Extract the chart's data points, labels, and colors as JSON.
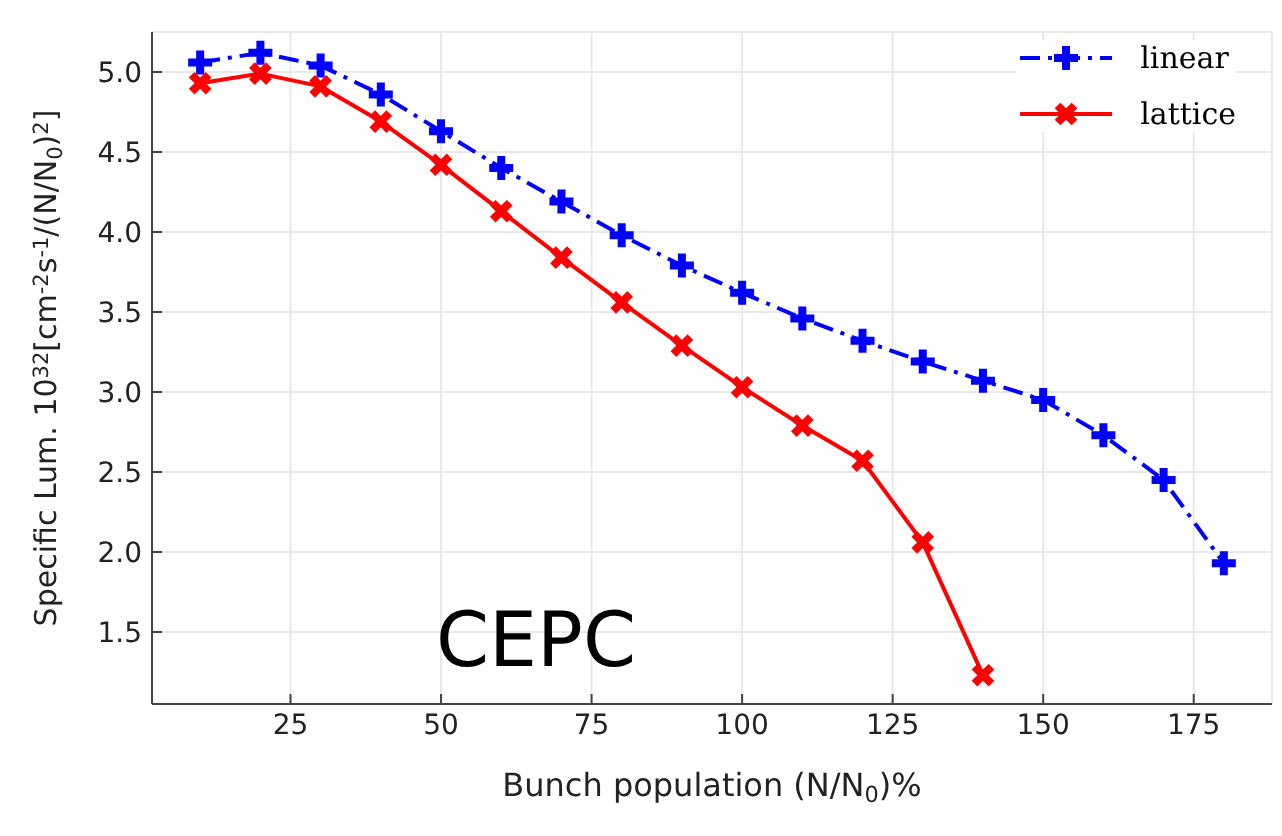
{
  "chart_data": {
    "type": "line",
    "xlabel": "Bunch population (N/N$_{0}$)%",
    "ylabel": "Specific Lum. 10$^{32}$[cm$^{-2}$s$^{-1}$/(N/N$_{0}$)$^{2}$]",
    "annotations": [
      "CEPC"
    ],
    "xlim": [
      2,
      188
    ],
    "xticks": [
      25,
      50,
      75,
      100,
      125,
      150,
      175
    ],
    "ylim": [
      1.05,
      5.25
    ],
    "yticks": [
      1.5,
      {
        "value": 2,
        "label": "2.0"
      },
      2.5,
      {
        "value": 3,
        "label": "3.0"
      },
      3.5,
      {
        "value": 4,
        "label": "4.0"
      },
      4.5,
      {
        "value": 5,
        "label": "5.0"
      }
    ],
    "grid": true,
    "legend": "top right",
    "marker": "cross",
    "series": [
      {
        "name": "linear",
        "color": "#0000ff",
        "line_style": "dashed",
        "x": [
          10,
          20,
          30,
          40,
          50,
          60,
          70,
          80,
          90,
          100,
          110,
          120,
          130,
          140,
          150,
          160,
          170,
          180
        ],
        "values": [
          5.06,
          5.12,
          5.04,
          4.86,
          4.63,
          4.4,
          4.19,
          3.98,
          3.79,
          3.62,
          3.46,
          3.32,
          3.19,
          3.07,
          2.95,
          2.73,
          2.45,
          1.93
        ]
      },
      {
        "name": "lattice",
        "color": "#ff0000",
        "line_style": "solid",
        "x": [
          10,
          20,
          30,
          40,
          50,
          60,
          70,
          80,
          90,
          100,
          110,
          120,
          130,
          140
        ],
        "values": [
          4.93,
          4.99,
          4.91,
          4.69,
          4.42,
          4.13,
          3.84,
          3.56,
          3.29,
          3.03,
          2.79,
          2.57,
          2.06,
          1.23
        ]
      }
    ]
  }
}
